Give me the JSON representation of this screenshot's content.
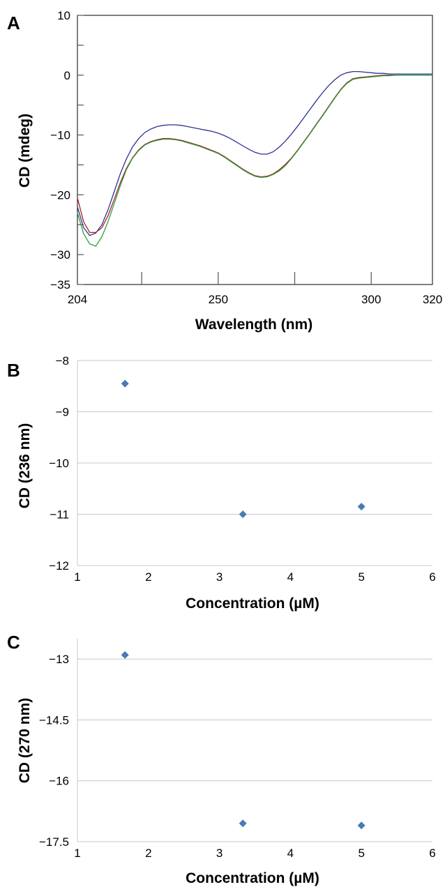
{
  "chart_data": [
    {
      "panel": "A",
      "type": "line",
      "xlabel": "Wavelength (nm)",
      "ylabel": "CD (mdeg)",
      "xlim": [
        204,
        320
      ],
      "ylim": [
        -35,
        10
      ],
      "x_tick_labels": [
        {
          "value": 204,
          "label": "204"
        },
        {
          "value": 250,
          "label": "250"
        },
        {
          "value": 300,
          "label": "300"
        },
        {
          "value": 320,
          "label": "320"
        }
      ],
      "y_tick_labels": [
        {
          "value": 10,
          "label": "10"
        },
        {
          "value": 0,
          "label": "0"
        },
        {
          "value": -10,
          "label": "−10"
        },
        {
          "value": -20,
          "label": "−20"
        },
        {
          "value": -30,
          "label": "−30"
        },
        {
          "value": -35,
          "label": "−35"
        }
      ],
      "grid": false,
      "series": [
        {
          "color": "#2e3192",
          "x": [
            204,
            206,
            208,
            210,
            212,
            214,
            216,
            218,
            220,
            222,
            224,
            226,
            228,
            230,
            232,
            234,
            236,
            238,
            240,
            242,
            244,
            246,
            248,
            250,
            252,
            254,
            256,
            258,
            260,
            262,
            264,
            266,
            268,
            270,
            272,
            274,
            276,
            278,
            280,
            282,
            284,
            286,
            288,
            290,
            292,
            294,
            296,
            298,
            300,
            302,
            304,
            306,
            308,
            310,
            312,
            314,
            316,
            318,
            320
          ],
          "y": [
            -22.0,
            -25.5,
            -26.8,
            -26.4,
            -25.0,
            -22.5,
            -19.5,
            -16.5,
            -14.0,
            -12.0,
            -10.6,
            -9.6,
            -9.0,
            -8.6,
            -8.4,
            -8.3,
            -8.3,
            -8.4,
            -8.6,
            -8.8,
            -9.0,
            -9.2,
            -9.4,
            -9.7,
            -10.1,
            -10.6,
            -11.2,
            -11.8,
            -12.4,
            -12.9,
            -13.2,
            -13.2,
            -12.8,
            -12.0,
            -11.0,
            -9.8,
            -8.5,
            -7.1,
            -5.7,
            -4.3,
            -3.0,
            -1.8,
            -0.8,
            0.0,
            0.4,
            0.6,
            0.6,
            0.5,
            0.4,
            0.3,
            0.3,
            0.2,
            0.2,
            0.2,
            0.2,
            0.2,
            0.2,
            0.2,
            0.2
          ]
        },
        {
          "color": "#a32020",
          "x": [
            204,
            206,
            208,
            210,
            212,
            214,
            216,
            218,
            220,
            222,
            224,
            226,
            228,
            230,
            232,
            234,
            236,
            238,
            240,
            242,
            244,
            246,
            248,
            250,
            252,
            254,
            256,
            258,
            260,
            262,
            264,
            266,
            268,
            270,
            272,
            274,
            276,
            278,
            280,
            282,
            284,
            286,
            288,
            290,
            292,
            294,
            296,
            298,
            300,
            302,
            304,
            306,
            308,
            310,
            312,
            314,
            316,
            318,
            320
          ],
          "y": [
            -20.5,
            -24.5,
            -26.3,
            -26.3,
            -25.5,
            -23.5,
            -20.8,
            -18.0,
            -15.6,
            -13.8,
            -12.5,
            -11.6,
            -11.1,
            -10.8,
            -10.6,
            -10.6,
            -10.7,
            -10.9,
            -11.2,
            -11.5,
            -11.8,
            -12.2,
            -12.6,
            -13.0,
            -13.6,
            -14.3,
            -15.0,
            -15.7,
            -16.3,
            -16.8,
            -17.0,
            -16.9,
            -16.5,
            -15.8,
            -14.9,
            -13.8,
            -12.5,
            -11.1,
            -9.7,
            -8.2,
            -6.8,
            -5.3,
            -3.8,
            -2.4,
            -1.3,
            -0.6,
            -0.4,
            -0.3,
            -0.2,
            -0.1,
            0.0,
            0.0,
            0.0,
            0.0,
            0.0,
            0.0,
            0.0,
            0.0,
            0.0
          ]
        },
        {
          "color": "#2f9e3f",
          "x": [
            204,
            206,
            208,
            210,
            212,
            214,
            216,
            218,
            220,
            222,
            224,
            226,
            228,
            230,
            232,
            234,
            236,
            238,
            240,
            242,
            244,
            246,
            248,
            250,
            252,
            254,
            256,
            258,
            260,
            262,
            264,
            266,
            268,
            270,
            272,
            274,
            276,
            278,
            280,
            282,
            284,
            286,
            288,
            290,
            292,
            294,
            296,
            298,
            300,
            302,
            304,
            306,
            308,
            310,
            312,
            314,
            316,
            318,
            320
          ],
          "y": [
            -23.0,
            -26.5,
            -28.2,
            -28.6,
            -27.0,
            -24.5,
            -21.5,
            -18.5,
            -15.8,
            -13.9,
            -12.6,
            -11.7,
            -11.2,
            -10.9,
            -10.7,
            -10.7,
            -10.8,
            -11.0,
            -11.3,
            -11.6,
            -11.9,
            -12.3,
            -12.7,
            -13.1,
            -13.7,
            -14.4,
            -15.1,
            -15.8,
            -16.4,
            -16.9,
            -17.1,
            -17.0,
            -16.6,
            -16.0,
            -15.1,
            -13.9,
            -12.6,
            -11.2,
            -9.8,
            -8.3,
            -6.9,
            -5.4,
            -3.9,
            -2.5,
            -1.4,
            -0.7,
            -0.5,
            -0.4,
            -0.3,
            -0.2,
            -0.1,
            -0.1,
            0.0,
            0.0,
            0.0,
            0.0,
            0.0,
            0.0,
            0.0
          ]
        }
      ]
    },
    {
      "panel": "B",
      "type": "scatter",
      "xlabel": "Concentration (µM)",
      "ylabel": "CD (236 nm)",
      "xlim": [
        1,
        6
      ],
      "ylim": [
        -12,
        -8
      ],
      "x_tick_labels": [
        {
          "value": 1,
          "label": "1"
        },
        {
          "value": 2,
          "label": "2"
        },
        {
          "value": 3,
          "label": "3"
        },
        {
          "value": 4,
          "label": "4"
        },
        {
          "value": 5,
          "label": "5"
        },
        {
          "value": 6,
          "label": "6"
        }
      ],
      "y_tick_labels": [
        {
          "value": -8,
          "label": "−8"
        },
        {
          "value": -9,
          "label": "−9"
        },
        {
          "value": -10,
          "label": "−10"
        },
        {
          "value": -11,
          "label": "−11"
        },
        {
          "value": -12,
          "label": "−12"
        }
      ],
      "grid": true,
      "marker_color": "#4a7ab5",
      "points": [
        {
          "x": 1.67,
          "y": -8.45
        },
        {
          "x": 3.33,
          "y": -11.0
        },
        {
          "x": 5.0,
          "y": -10.85
        }
      ]
    },
    {
      "panel": "C",
      "type": "scatter",
      "xlabel": "Concentration (µM)",
      "ylabel": "CD (270 nm)",
      "xlim": [
        1,
        6
      ],
      "ylim": [
        -17.5,
        -12.5
      ],
      "x_tick_labels": [
        {
          "value": 1,
          "label": "1"
        },
        {
          "value": 2,
          "label": "2"
        },
        {
          "value": 3,
          "label": "3"
        },
        {
          "value": 4,
          "label": "4"
        },
        {
          "value": 5,
          "label": "5"
        },
        {
          "value": 6,
          "label": "6"
        }
      ],
      "y_tick_labels": [
        {
          "value": -13,
          "label": "−13"
        },
        {
          "value": -14.5,
          "label": "−14.5"
        },
        {
          "value": -16,
          "label": "−16"
        },
        {
          "value": -17.5,
          "label": "−17.5"
        }
      ],
      "grid": true,
      "marker_color": "#4a7ab5",
      "points": [
        {
          "x": 1.67,
          "y": -12.9
        },
        {
          "x": 3.33,
          "y": -17.05
        },
        {
          "x": 5.0,
          "y": -17.1
        }
      ]
    }
  ]
}
